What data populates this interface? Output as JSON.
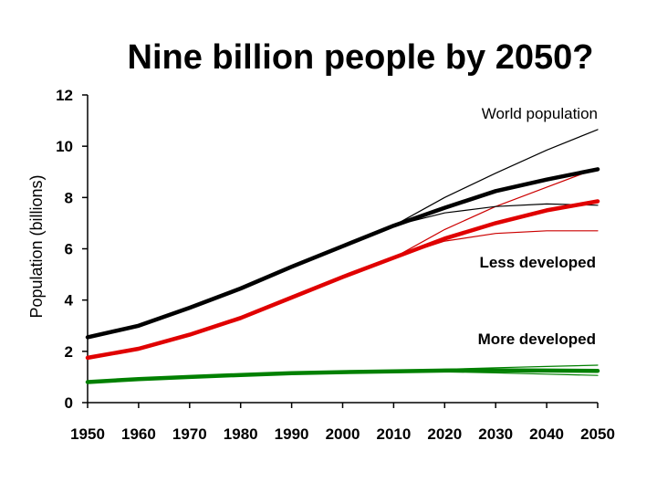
{
  "chart_data": {
    "type": "line",
    "title": "Nine billion people by 2050?",
    "xlabel": "",
    "ylabel": "Population (billions)",
    "xlim": [
      1950,
      2050
    ],
    "ylim": [
      0,
      12
    ],
    "xticks": [
      1950,
      1960,
      1970,
      1980,
      1990,
      2000,
      2010,
      2020,
      2030,
      2040,
      2050
    ],
    "yticks": [
      0,
      2,
      4,
      6,
      8,
      10,
      12
    ],
    "grid": false,
    "annotations": [
      {
        "text": "World population",
        "color": "#000000"
      },
      {
        "text": "Less developed",
        "color": "#cc0000"
      },
      {
        "text": "More developed",
        "color": "#008000"
      }
    ],
    "x": [
      1950,
      1960,
      1970,
      1980,
      1990,
      2000,
      2010,
      2020,
      2030,
      2040,
      2050
    ],
    "series": [
      {
        "group": "world",
        "variant": "medium",
        "color": "#000000",
        "values": [
          2.55,
          3.0,
          3.7,
          4.45,
          5.3,
          6.1,
          6.9,
          7.6,
          8.25,
          8.7,
          9.1
        ]
      },
      {
        "group": "world",
        "variant": "high",
        "color": "#000000",
        "values": [
          null,
          null,
          null,
          null,
          null,
          null,
          6.9,
          8.0,
          8.95,
          9.85,
          10.65
        ]
      },
      {
        "group": "world",
        "variant": "low",
        "color": "#000000",
        "values": [
          null,
          null,
          null,
          null,
          null,
          null,
          6.9,
          7.4,
          7.65,
          7.75,
          7.7
        ]
      },
      {
        "group": "less",
        "variant": "medium",
        "color": "#e00000",
        "values": [
          1.75,
          2.1,
          2.65,
          3.3,
          4.1,
          4.9,
          5.65,
          6.4,
          7.0,
          7.5,
          7.85
        ]
      },
      {
        "group": "less",
        "variant": "high",
        "color": "#cc0000",
        "values": [
          null,
          null,
          null,
          null,
          null,
          null,
          5.65,
          6.75,
          7.65,
          8.4,
          9.15
        ]
      },
      {
        "group": "less",
        "variant": "low",
        "color": "#cc0000",
        "values": [
          null,
          null,
          null,
          null,
          null,
          null,
          5.65,
          6.3,
          6.6,
          6.7,
          6.7
        ]
      },
      {
        "group": "more",
        "variant": "medium",
        "color": "#008000",
        "values": [
          0.8,
          0.92,
          1.0,
          1.08,
          1.15,
          1.19,
          1.22,
          1.25,
          1.26,
          1.25,
          1.24
        ]
      },
      {
        "group": "more",
        "variant": "high",
        "color": "#008000",
        "values": [
          null,
          null,
          null,
          null,
          null,
          null,
          1.22,
          1.3,
          1.36,
          1.41,
          1.46
        ]
      },
      {
        "group": "more",
        "variant": "low",
        "color": "#008000",
        "values": [
          null,
          null,
          null,
          null,
          null,
          null,
          1.22,
          1.2,
          1.16,
          1.11,
          1.06
        ]
      }
    ]
  }
}
